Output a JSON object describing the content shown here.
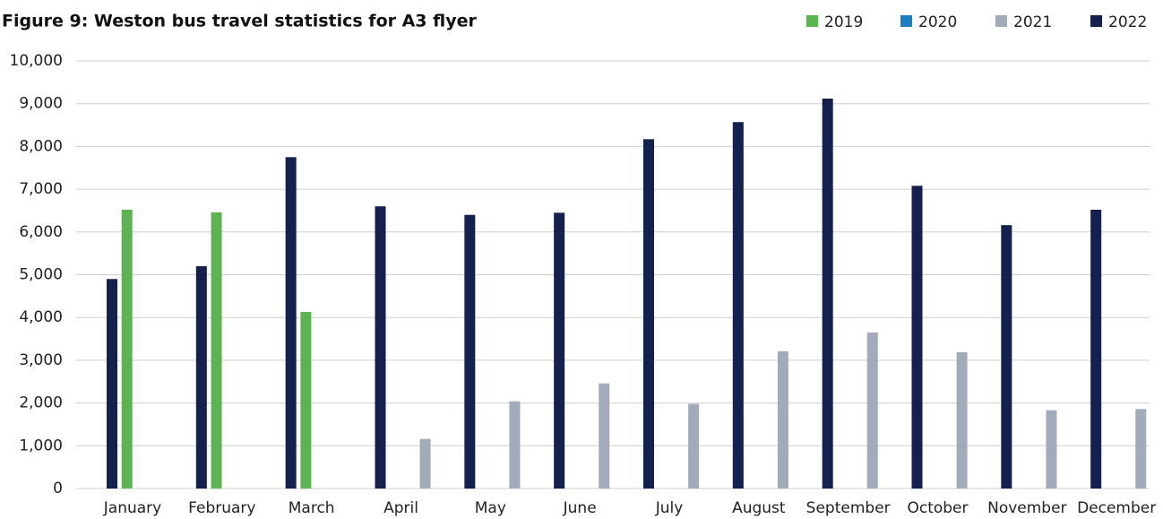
{
  "chart_data": {
    "type": "bar",
    "title": "Figure 9: Weston bus travel statistics for A3 flyer",
    "categories": [
      "January",
      "February",
      "March",
      "April",
      "May",
      "June",
      "July",
      "August",
      "September",
      "October",
      "November",
      "December"
    ],
    "series": [
      {
        "name": "2019",
        "color": "#5bb450",
        "values": [
          6520,
          6460,
          4130,
          null,
          null,
          null,
          null,
          null,
          null,
          null,
          null,
          null
        ]
      },
      {
        "name": "2020",
        "color": "#1a7fc4",
        "values": [
          null,
          null,
          null,
          null,
          null,
          null,
          null,
          null,
          null,
          null,
          null,
          null
        ]
      },
      {
        "name": "2021",
        "color": "#a2abb9",
        "values": [
          null,
          null,
          null,
          1160,
          2040,
          2460,
          1980,
          3210,
          3650,
          3190,
          1830,
          1860
        ]
      },
      {
        "name": "2022",
        "color": "#14214f",
        "values": [
          4900,
          5200,
          7750,
          6600,
          6400,
          6450,
          8170,
          8570,
          9120,
          7080,
          6160,
          6520
        ]
      }
    ],
    "ylim": [
      0,
      10000
    ],
    "yticks": [
      0,
      {
        "value": 1000,
        "label": "1,000"
      },
      {
        "value": 2000,
        "label": "2,000"
      },
      {
        "value": 3000,
        "label": "3,000"
      },
      {
        "value": 4000,
        "label": "4,000"
      },
      {
        "value": 5000,
        "label": "5,000"
      },
      {
        "value": 6000,
        "label": "6,000"
      },
      {
        "value": 7000,
        "label": "7,000"
      },
      {
        "value": 8000,
        "label": "8,000"
      },
      {
        "value": 9000,
        "label": "9,000"
      },
      {
        "value": 10000,
        "label": "10,000"
      }
    ],
    "grid": true,
    "legend": "top-right"
  }
}
